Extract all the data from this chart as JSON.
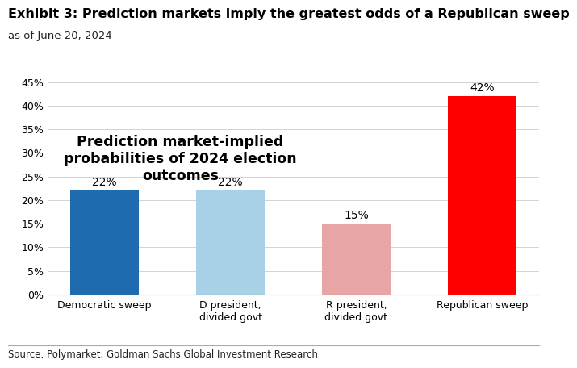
{
  "title": "Exhibit 3: Prediction markets imply the greatest odds of a Republican sweep",
  "subtitle": "as of June 20, 2024",
  "chart_title": "Prediction market-implied\nprobabilities of 2024 election\noutcomes",
  "categories": [
    "Democratic sweep",
    "D president,\ndivided govt",
    "R president,\ndivided govt",
    "Republican sweep"
  ],
  "values": [
    0.22,
    0.22,
    0.15,
    0.42
  ],
  "labels": [
    "22%",
    "22%",
    "15%",
    "42%"
  ],
  "bar_colors": [
    "#1F6BB0",
    "#A8D0E6",
    "#E8A5A5",
    "#FF0000"
  ],
  "ylim": [
    0,
    0.45
  ],
  "yticks": [
    0.0,
    0.05,
    0.1,
    0.15,
    0.2,
    0.25,
    0.3,
    0.35,
    0.4,
    0.45
  ],
  "ytick_labels": [
    "0%",
    "5%",
    "10%",
    "15%",
    "20%",
    "25%",
    "30%",
    "35%",
    "40%",
    "45%"
  ],
  "source": "Source: Polymarket, Goldman Sachs Global Investment Research",
  "background_color": "#FFFFFF",
  "plot_bg_color": "#FFFFFF",
  "title_fontsize": 11.5,
  "subtitle_fontsize": 9.5,
  "chart_title_fontsize": 12.5,
  "label_fontsize": 10,
  "tick_fontsize": 9,
  "source_fontsize": 8.5
}
